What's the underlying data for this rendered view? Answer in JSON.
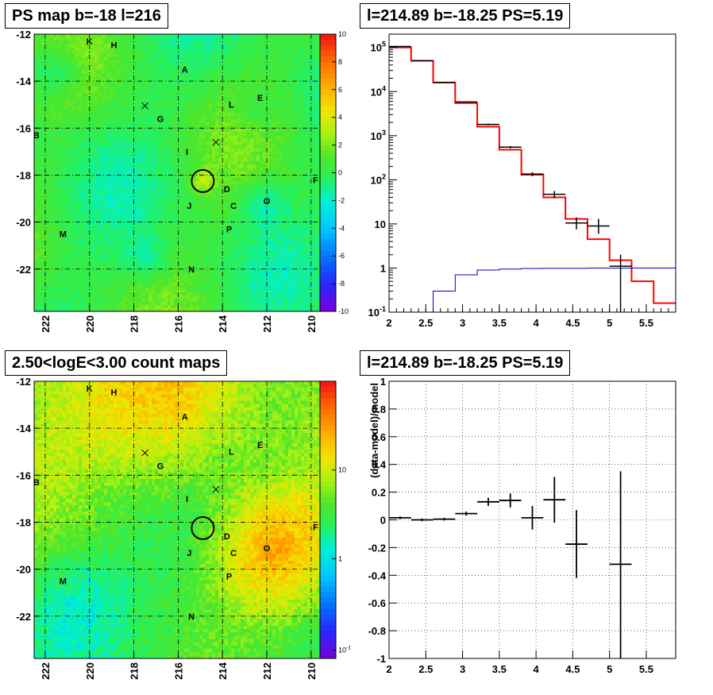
{
  "panels": {
    "tl": {
      "title": "PS map b=-18 l=216"
    },
    "tr": {
      "title": "l=214.89 b=-18.25 PS=5.19"
    },
    "bl": {
      "title": "2.50<logE<3.00 count maps"
    },
    "br": {
      "title": "l=214.89 b=-18.25 PS=5.19"
    }
  },
  "chart_data": [
    {
      "id": "ps-map",
      "type": "heatmap",
      "title": "PS map b=-18 l=216",
      "x_ticks": [
        "222",
        "220",
        "218",
        "216",
        "214",
        "212",
        "210"
      ],
      "y_ticks": [
        "-12",
        "-14",
        "-16",
        "-18",
        "-20",
        "-22"
      ],
      "xlim": [
        222.5,
        209.6
      ],
      "ylim": [
        -23.8,
        -12
      ],
      "colorbar": {
        "ticks": [
          "10",
          "8",
          "6",
          "4",
          "2",
          "0",
          "-2",
          "-4",
          "-6",
          "-8",
          "-10"
        ],
        "range": [
          -10,
          10
        ]
      },
      "source_labels": [
        {
          "label": "K",
          "l": 220.0,
          "b": -12.3
        },
        {
          "label": "H",
          "l": 218.9,
          "b": -12.45
        },
        {
          "label": "A",
          "l": 215.7,
          "b": -13.5
        },
        {
          "label": "E",
          "l": 212.3,
          "b": -14.7
        },
        {
          "label": "L",
          "l": 213.6,
          "b": -15.0
        },
        {
          "label": "G",
          "l": 216.8,
          "b": -15.6
        },
        {
          "label": "B",
          "l": 222.4,
          "b": -16.3
        },
        {
          "label": "I",
          "l": 215.6,
          "b": -17.0
        },
        {
          "label": "F",
          "l": 209.8,
          "b": -18.2
        },
        {
          "label": "D",
          "l": 213.8,
          "b": -18.6
        },
        {
          "label": "O",
          "l": 212.0,
          "b": -19.1
        },
        {
          "label": "J",
          "l": 215.5,
          "b": -19.3
        },
        {
          "label": "C",
          "l": 213.5,
          "b": -19.3
        },
        {
          "label": "P",
          "l": 213.7,
          "b": -20.3
        },
        {
          "label": "M",
          "l": 221.2,
          "b": -20.5
        },
        {
          "label": "N",
          "l": 215.4,
          "b": -22.0
        }
      ],
      "crosses": [
        {
          "l": 217.5,
          "b": -15.05
        },
        {
          "l": 214.3,
          "b": -16.6
        }
      ],
      "circle": {
        "l": 214.89,
        "b": -18.25
      }
    },
    {
      "id": "spectrum",
      "type": "line",
      "title": "l=214.89 b=-18.25 PS=5.19",
      "xlabel": "",
      "ylabel": "",
      "yscale": "log",
      "xlim": [
        2,
        5.9
      ],
      "ylim": [
        0.1,
        200000
      ],
      "x_ticks": [
        "2",
        "2.5",
        "3",
        "3.5",
        "4",
        "4.5",
        "5",
        "5.5"
      ],
      "y_ticks": [
        "10^-1",
        "1",
        "10",
        "10^2",
        "10^3",
        "10^4",
        "10^5"
      ],
      "series": [
        {
          "kind": "model-step",
          "color": "#ff0000",
          "edges": [
            2.0,
            2.3,
            2.6,
            2.9,
            3.2,
            3.5,
            3.8,
            4.1,
            4.4,
            4.7,
            5.0,
            5.3,
            5.6,
            5.9
          ],
          "values": [
            100000,
            50000,
            16000,
            5500,
            1600,
            480,
            130,
            40,
            13,
            4.5,
            1.5,
            0.5,
            0.16
          ]
        },
        {
          "kind": "background-step",
          "color": "#0000cc",
          "edges": [
            2.6,
            2.9,
            3.2,
            3.5,
            3.8,
            4.1,
            4.4,
            4.7,
            5.0,
            5.3,
            5.6,
            5.9
          ],
          "values": [
            0.3,
            0.7,
            0.9,
            0.95,
            0.98,
            0.99,
            0.99,
            1.0,
            1.0,
            1.0,
            1.0
          ]
        },
        {
          "kind": "data",
          "color": "#000000",
          "points": [
            {
              "x": 2.15,
              "y": 105000,
              "xerr": 0.15,
              "ylo": 104000,
              "yhi": 106000
            },
            {
              "x": 2.45,
              "y": 50000,
              "xerr": 0.15,
              "ylo": 49500,
              "yhi": 50500
            },
            {
              "x": 2.75,
              "y": 16000,
              "xerr": 0.15,
              "ylo": 15800,
              "yhi": 16200
            },
            {
              "x": 3.05,
              "y": 5800,
              "xerr": 0.15,
              "ylo": 5650,
              "yhi": 5950
            },
            {
              "x": 3.35,
              "y": 1800,
              "xerr": 0.15,
              "ylo": 1720,
              "yhi": 1880
            },
            {
              "x": 3.65,
              "y": 550,
              "xerr": 0.15,
              "ylo": 515,
              "yhi": 585
            },
            {
              "x": 3.95,
              "y": 135,
              "xerr": 0.15,
              "ylo": 120,
              "yhi": 150
            },
            {
              "x": 4.25,
              "y": 47,
              "xerr": 0.15,
              "ylo": 38,
              "yhi": 56
            },
            {
              "x": 4.55,
              "y": 10.5,
              "xerr": 0.15,
              "ylo": 7.5,
              "yhi": 14
            },
            {
              "x": 4.85,
              "y": 9,
              "xerr": 0.15,
              "ylo": 6,
              "yhi": 13
            },
            {
              "x": 5.15,
              "y": 1.1,
              "xerr": 0.15,
              "ylo": 0.1,
              "yhi": 2.0
            }
          ]
        }
      ]
    },
    {
      "id": "count-map",
      "type": "heatmap",
      "title": "2.50<logE<3.00 count maps",
      "x_ticks": [
        "222",
        "220",
        "218",
        "216",
        "214",
        "212",
        "210"
      ],
      "y_ticks": [
        "-12",
        "-14",
        "-16",
        "-18",
        "-20",
        "-22"
      ],
      "xlim": [
        222.5,
        209.6
      ],
      "ylim": [
        -23.8,
        -12
      ],
      "colorbar": {
        "ticks": [
          "10",
          "1",
          "10^-1"
        ],
        "scale": "log"
      },
      "source_labels": [
        {
          "label": "K",
          "l": 220.0,
          "b": -12.3
        },
        {
          "label": "H",
          "l": 218.9,
          "b": -12.45
        },
        {
          "label": "A",
          "l": 215.7,
          "b": -13.5
        },
        {
          "label": "E",
          "l": 212.3,
          "b": -14.7
        },
        {
          "label": "L",
          "l": 213.6,
          "b": -15.0
        },
        {
          "label": "G",
          "l": 216.8,
          "b": -15.6
        },
        {
          "label": "B",
          "l": 222.4,
          "b": -16.3
        },
        {
          "label": "I",
          "l": 215.6,
          "b": -17.0
        },
        {
          "label": "F",
          "l": 209.8,
          "b": -18.2
        },
        {
          "label": "D",
          "l": 213.8,
          "b": -18.6
        },
        {
          "label": "O",
          "l": 212.0,
          "b": -19.1
        },
        {
          "label": "J",
          "l": 215.5,
          "b": -19.3
        },
        {
          "label": "C",
          "l": 213.5,
          "b": -19.3
        },
        {
          "label": "P",
          "l": 213.7,
          "b": -20.3
        },
        {
          "label": "M",
          "l": 221.2,
          "b": -20.5
        },
        {
          "label": "N",
          "l": 215.4,
          "b": -22.0
        }
      ],
      "crosses": [
        {
          "l": 217.5,
          "b": -15.05
        },
        {
          "l": 214.3,
          "b": -16.6
        }
      ],
      "circle": {
        "l": 214.89,
        "b": -18.25
      }
    },
    {
      "id": "residuals",
      "type": "scatter",
      "title": "l=214.89 b=-18.25 PS=5.19",
      "ylabel": "(data-model)/model",
      "xlim": [
        2,
        5.9
      ],
      "ylim": [
        -1,
        1
      ],
      "x_ticks": [
        "2",
        "2.5",
        "3",
        "3.5",
        "4",
        "4.5",
        "5",
        "5.5"
      ],
      "y_ticks": [
        "1",
        "0.8",
        "0.6",
        "0.4",
        "0.2",
        "0",
        "-0.2",
        "-0.4",
        "-0.6",
        "-0.8",
        "-1"
      ],
      "grid": true,
      "points": [
        {
          "x": 2.15,
          "y": 0.015,
          "xerr": 0.15,
          "ylo": 0.005,
          "yhi": 0.025
        },
        {
          "x": 2.45,
          "y": 0.0,
          "xerr": 0.15,
          "ylo": -0.01,
          "yhi": 0.01
        },
        {
          "x": 2.75,
          "y": 0.005,
          "xerr": 0.15,
          "ylo": -0.005,
          "yhi": 0.015
        },
        {
          "x": 3.05,
          "y": 0.045,
          "xerr": 0.15,
          "ylo": 0.03,
          "yhi": 0.06
        },
        {
          "x": 3.35,
          "y": 0.13,
          "xerr": 0.15,
          "ylo": 0.1,
          "yhi": 0.16
        },
        {
          "x": 3.65,
          "y": 0.14,
          "xerr": 0.15,
          "ylo": 0.09,
          "yhi": 0.19
        },
        {
          "x": 3.95,
          "y": 0.015,
          "xerr": 0.15,
          "ylo": -0.07,
          "yhi": 0.1
        },
        {
          "x": 4.25,
          "y": 0.145,
          "xerr": 0.15,
          "ylo": -0.02,
          "yhi": 0.31
        },
        {
          "x": 4.55,
          "y": -0.175,
          "xerr": 0.15,
          "ylo": -0.42,
          "yhi": 0.07
        },
        {
          "x": 5.15,
          "y": -0.32,
          "xerr": 0.15,
          "ylo": -1.0,
          "yhi": 0.35
        }
      ]
    }
  ]
}
